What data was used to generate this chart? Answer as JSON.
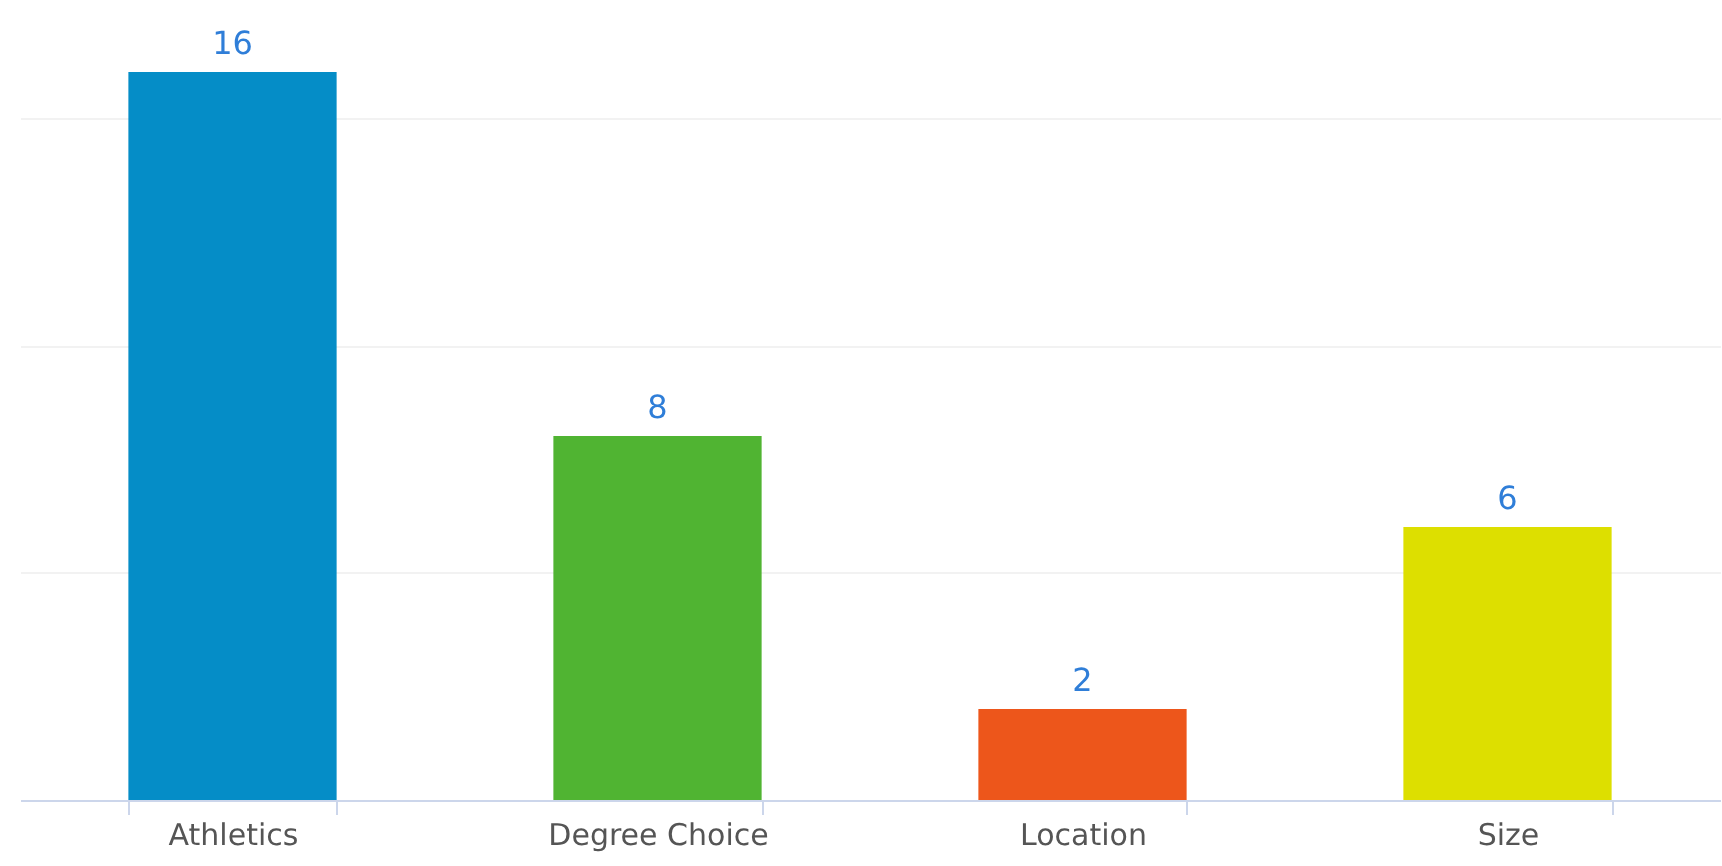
{
  "chart_data": {
    "type": "bar",
    "categories": [
      "Athletics",
      "Degree Choice",
      "Location",
      "Size"
    ],
    "values": [
      16,
      8,
      2,
      6
    ],
    "colors": [
      "#058dc7",
      "#50b432",
      "#ed561b",
      "#dddf00"
    ],
    "yticks": [
      {
        "value": 0,
        "label": null
      },
      {
        "value": 5,
        "label": null
      },
      {
        "value": 10,
        "label": null
      },
      {
        "value": 15,
        "label": null
      }
    ],
    "grid": "y",
    "tick_labels": "x",
    "data_labels": true
  }
}
